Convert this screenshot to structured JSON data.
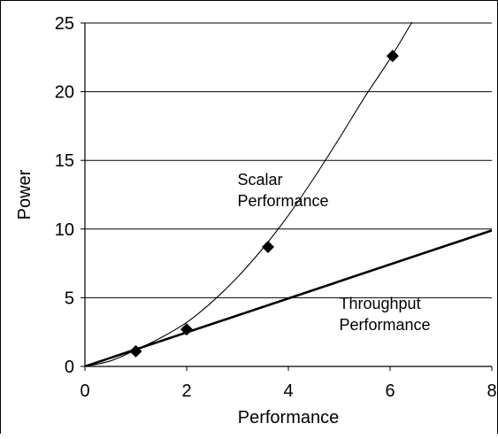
{
  "chart_data": {
    "type": "line",
    "title": "",
    "xlabel": "Performance",
    "ylabel": "Power",
    "xlim": [
      0,
      8
    ],
    "ylim": [
      0,
      25
    ],
    "xticks": [
      "0",
      "2",
      "4",
      "6",
      "8"
    ],
    "yticks": [
      "0",
      "5",
      "10",
      "15",
      "20",
      "25"
    ],
    "grid": "horizontal",
    "series": [
      {
        "name": "Scalar Performance",
        "style": "thin curve with diamond markers",
        "color": "#000000",
        "points": [
          {
            "x": 1.0,
            "y": 1.1
          },
          {
            "x": 2.0,
            "y": 2.7
          },
          {
            "x": 3.6,
            "y": 8.7
          },
          {
            "x": 6.05,
            "y": 22.6
          }
        ],
        "curve": [
          {
            "x": 0,
            "y": 0
          },
          {
            "x": 0.5,
            "y": 0.4
          },
          {
            "x": 1.0,
            "y": 1.2
          },
          {
            "x": 1.5,
            "y": 2.1
          },
          {
            "x": 2.0,
            "y": 3.2
          },
          {
            "x": 2.5,
            "y": 4.7
          },
          {
            "x": 3.0,
            "y": 6.5
          },
          {
            "x": 3.5,
            "y": 8.6
          },
          {
            "x": 4.0,
            "y": 11.0
          },
          {
            "x": 4.5,
            "y": 13.7
          },
          {
            "x": 5.0,
            "y": 16.6
          },
          {
            "x": 5.5,
            "y": 19.6
          },
          {
            "x": 6.0,
            "y": 22.4
          },
          {
            "x": 6.5,
            "y": 25.5
          }
        ]
      },
      {
        "name": "Throughput Performance",
        "style": "thick straight line",
        "color": "#000000",
        "curve": [
          {
            "x": 0,
            "y": 0
          },
          {
            "x": 8,
            "y": 9.9
          }
        ]
      }
    ],
    "annotations": [
      {
        "lines": [
          "Scalar",
          "Performance"
        ],
        "x": 3.0,
        "y": 13.2
      },
      {
        "lines": [
          "Throughput",
          "Performance"
        ],
        "x": 5.0,
        "y": 4.2
      }
    ]
  }
}
